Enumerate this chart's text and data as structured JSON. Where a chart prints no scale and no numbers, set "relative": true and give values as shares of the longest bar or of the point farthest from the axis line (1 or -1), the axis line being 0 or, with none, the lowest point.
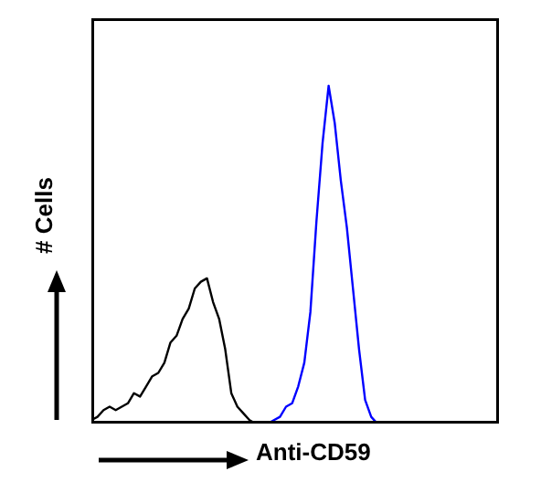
{
  "chart_data": {
    "type": "line",
    "xlabel": "Anti-CD59",
    "ylabel": "# Cells",
    "relative": true,
    "categories": [
      null,
      null,
      null,
      null,
      null,
      null,
      null,
      null,
      null,
      null,
      null,
      null,
      null,
      null,
      null,
      null,
      null,
      null,
      null,
      null,
      null,
      null,
      null,
      null,
      null,
      null,
      null,
      null,
      null,
      null,
      null,
      null,
      null,
      null,
      null,
      null,
      null,
      null,
      null,
      null,
      null,
      null,
      null,
      null,
      null,
      null,
      null,
      null,
      null,
      null,
      null,
      null,
      null,
      null,
      null,
      null,
      null,
      null,
      null,
      null,
      null,
      null,
      null,
      null,
      null,
      null,
      null,
      null
    ],
    "series": [
      {
        "color": "#000000",
        "values": [
          0.01,
          0.02,
          0.04,
          0.05,
          0.04,
          0.05,
          0.06,
          0.09,
          0.08,
          0.11,
          0.14,
          0.15,
          0.18,
          0.24,
          0.26,
          0.31,
          0.34,
          0.4,
          0.42,
          0.43,
          0.36,
          0.31,
          0.22,
          0.09,
          0.05,
          0.03,
          0.01,
          0,
          0,
          null,
          null,
          null,
          null,
          null,
          null,
          null,
          null,
          null,
          null,
          null,
          null,
          null,
          null,
          null,
          null,
          null,
          null,
          null,
          null,
          null,
          null,
          null,
          null,
          null,
          null,
          null,
          null,
          null,
          null,
          null,
          null,
          null,
          null,
          null,
          null,
          null,
          null,
          null
        ]
      },
      {
        "color": "#0000ff",
        "values": [
          null,
          null,
          null,
          null,
          null,
          null,
          null,
          null,
          null,
          null,
          null,
          null,
          null,
          null,
          null,
          null,
          null,
          null,
          null,
          null,
          null,
          null,
          null,
          null,
          null,
          null,
          null,
          null,
          0,
          0,
          0.01,
          0.02,
          0.05,
          0.06,
          0.11,
          0.18,
          0.33,
          0.6,
          0.83,
          1,
          0.89,
          0.72,
          0.58,
          0.4,
          0.22,
          0.07,
          0.02,
          0,
          null,
          null,
          null,
          null,
          null,
          null,
          null,
          null,
          null,
          null,
          null,
          null,
          null,
          null,
          null,
          null,
          null,
          null,
          null,
          null
        ]
      }
    ]
  }
}
